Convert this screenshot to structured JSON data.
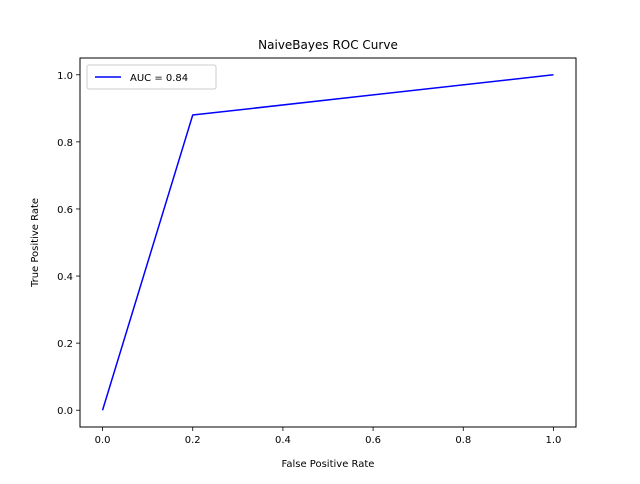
{
  "chart_data": {
    "type": "line",
    "title": "NaiveBayes ROC Curve",
    "xlabel": "False Positive Rate",
    "ylabel": "True Positive Rate",
    "xlim": [
      -0.05,
      1.05
    ],
    "ylim": [
      -0.05,
      1.05
    ],
    "xticks": [
      0.0,
      0.2,
      0.4,
      0.6,
      0.8,
      1.0
    ],
    "yticks": [
      0.0,
      0.2,
      0.4,
      0.6,
      0.8,
      1.0
    ],
    "xtick_labels": [
      "0.0",
      "0.2",
      "0.4",
      "0.6",
      "0.8",
      "1.0"
    ],
    "ytick_labels": [
      "0.0",
      "0.2",
      "0.4",
      "0.6",
      "0.8",
      "1.0"
    ],
    "grid": false,
    "legend_position": "top-left",
    "series": [
      {
        "name": "AUC = 0.84",
        "color": "#0000ff",
        "x": [
          0.0,
          0.2,
          1.0
        ],
        "y": [
          0.0,
          0.88,
          1.0
        ]
      }
    ]
  }
}
